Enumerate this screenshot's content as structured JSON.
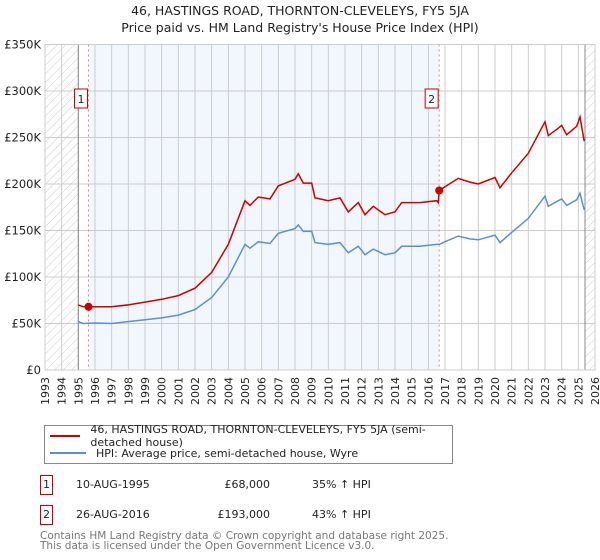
{
  "chart_data": {
    "type": "line",
    "title": "46, HASTINGS ROAD, THORNTON-CLEVELEYS, FY5 5JA",
    "subtitle": "Price paid vs. HM Land Registry's House Price Index (HPI)",
    "xlim": [
      1993,
      2026
    ],
    "ylim": [
      0,
      350000
    ],
    "x_ticks": [
      "1993",
      "1994",
      "1995",
      "1996",
      "1997",
      "1998",
      "1999",
      "2000",
      "2001",
      "2002",
      "2003",
      "2004",
      "2005",
      "2006",
      "2007",
      "2008",
      "2009",
      "2010",
      "2011",
      "2012",
      "2013",
      "2014",
      "2015",
      "2016",
      "2017",
      "2018",
      "2019",
      "2020",
      "2021",
      "2022",
      "2023",
      "2024",
      "2025",
      "2026"
    ],
    "y_ticks": [
      {
        "v": 0,
        "label": "£0"
      },
      {
        "v": 50000,
        "label": "£50K"
      },
      {
        "v": 100000,
        "label": "£100K"
      },
      {
        "v": 150000,
        "label": "£150K"
      },
      {
        "v": 200000,
        "label": "£200K"
      },
      {
        "v": 250000,
        "label": "£250K"
      },
      {
        "v": 300000,
        "label": "£300K"
      },
      {
        "v": 350000,
        "label": "£350K"
      }
    ],
    "grid": true,
    "hatched_ranges": [
      [
        1993,
        1995.0
      ],
      [
        2025.4,
        2026
      ]
    ],
    "shaded_range": [
      1995.61,
      2016.65
    ],
    "series": [
      {
        "name": "46, HASTINGS ROAD, THORNTON-CLEVELEYS, FY5 5JA (semi-detached house)",
        "color": "#cc0000",
        "points": [
          [
            1995.0,
            70
          ],
          [
            1995.3,
            68
          ],
          [
            1995.61,
            68
          ],
          [
            1996,
            68
          ],
          [
            1997,
            68
          ],
          [
            1998,
            70
          ],
          [
            1999,
            73
          ],
          [
            2000,
            76
          ],
          [
            2001,
            80
          ],
          [
            2002,
            88
          ],
          [
            2003,
            105
          ],
          [
            2004,
            135
          ],
          [
            2005,
            182
          ],
          [
            2005.3,
            177
          ],
          [
            2005.8,
            186
          ],
          [
            2006.5,
            184
          ],
          [
            2007,
            198
          ],
          [
            2008,
            205
          ],
          [
            2008.2,
            211
          ],
          [
            2008.5,
            201
          ],
          [
            2009,
            201
          ],
          [
            2009.2,
            185
          ],
          [
            2010,
            182
          ],
          [
            2010.7,
            185
          ],
          [
            2011.2,
            170
          ],
          [
            2011.8,
            180
          ],
          [
            2012.2,
            167
          ],
          [
            2012.7,
            176
          ],
          [
            2013.4,
            167
          ],
          [
            2014,
            170
          ],
          [
            2014.4,
            180
          ],
          [
            2015.5,
            180
          ],
          [
            2016.5,
            182
          ],
          [
            2016.6,
            180
          ],
          [
            2016.65,
            193
          ],
          [
            2017,
            197
          ],
          [
            2017.8,
            206
          ],
          [
            2018.5,
            202
          ],
          [
            2019,
            200
          ],
          [
            2020,
            207
          ],
          [
            2020.3,
            196
          ],
          [
            2021,
            212
          ],
          [
            2022,
            233
          ],
          [
            2023,
            267
          ],
          [
            2023.2,
            252
          ],
          [
            2023.8,
            260
          ],
          [
            2024,
            263
          ],
          [
            2024.3,
            253
          ],
          [
            2024.9,
            262
          ],
          [
            2025.1,
            272
          ],
          [
            2025.35,
            246
          ]
        ]
      },
      {
        "name": "HPI: Average price, semi-detached house, Wyre",
        "color": "#5b8fd4",
        "points": [
          [
            1995.0,
            52
          ],
          [
            1995.3,
            50
          ],
          [
            1996,
            50.5
          ],
          [
            1997,
            50
          ],
          [
            1998,
            52
          ],
          [
            1999,
            54
          ],
          [
            2000,
            56
          ],
          [
            2001,
            59
          ],
          [
            2002,
            65
          ],
          [
            2003,
            78
          ],
          [
            2004,
            100
          ],
          [
            2005,
            135
          ],
          [
            2005.3,
            131
          ],
          [
            2005.8,
            138
          ],
          [
            2006.5,
            136
          ],
          [
            2007,
            147
          ],
          [
            2008,
            152
          ],
          [
            2008.2,
            156
          ],
          [
            2008.5,
            149
          ],
          [
            2009,
            149
          ],
          [
            2009.2,
            137
          ],
          [
            2010,
            135
          ],
          [
            2010.7,
            137
          ],
          [
            2011.2,
            126
          ],
          [
            2011.8,
            133
          ],
          [
            2012.2,
            124
          ],
          [
            2012.7,
            130
          ],
          [
            2013.4,
            124
          ],
          [
            2014,
            126
          ],
          [
            2014.4,
            133
          ],
          [
            2015.5,
            133
          ],
          [
            2016.5,
            135
          ],
          [
            2016.65,
            135
          ],
          [
            2017,
            138
          ],
          [
            2017.8,
            144
          ],
          [
            2018.5,
            141
          ],
          [
            2019,
            140
          ],
          [
            2020,
            145
          ],
          [
            2020.3,
            137
          ],
          [
            2021,
            148
          ],
          [
            2022,
            163
          ],
          [
            2023,
            187
          ],
          [
            2023.2,
            176
          ],
          [
            2023.8,
            182
          ],
          [
            2024,
            184
          ],
          [
            2024.3,
            177
          ],
          [
            2024.9,
            183
          ],
          [
            2025.1,
            190
          ],
          [
            2025.35,
            172
          ]
        ]
      }
    ],
    "y_unit_multiplier": 1000,
    "annotations": [
      {
        "label": "1",
        "x": 1995.61,
        "y": 68000
      },
      {
        "label": "2",
        "x": 2016.65,
        "y": 193000
      }
    ]
  },
  "legend": {
    "property": "46, HASTINGS ROAD, THORNTON-CLEVELEYS, FY5 5JA (semi-detached house)",
    "hpi": "HPI: Average price, semi-detached house, Wyre"
  },
  "transactions": [
    {
      "num": "1",
      "date": "10-AUG-1995",
      "price": "£68,000",
      "hpi": "35% ↑ HPI"
    },
    {
      "num": "2",
      "date": "26-AUG-2016",
      "price": "£193,000",
      "hpi": "43% ↑ HPI"
    }
  ],
  "footer": {
    "line1": "Contains HM Land Registry data © Crown copyright and database right 2025.",
    "line2": "This data is licensed under the Open Government Licence v3.0."
  }
}
